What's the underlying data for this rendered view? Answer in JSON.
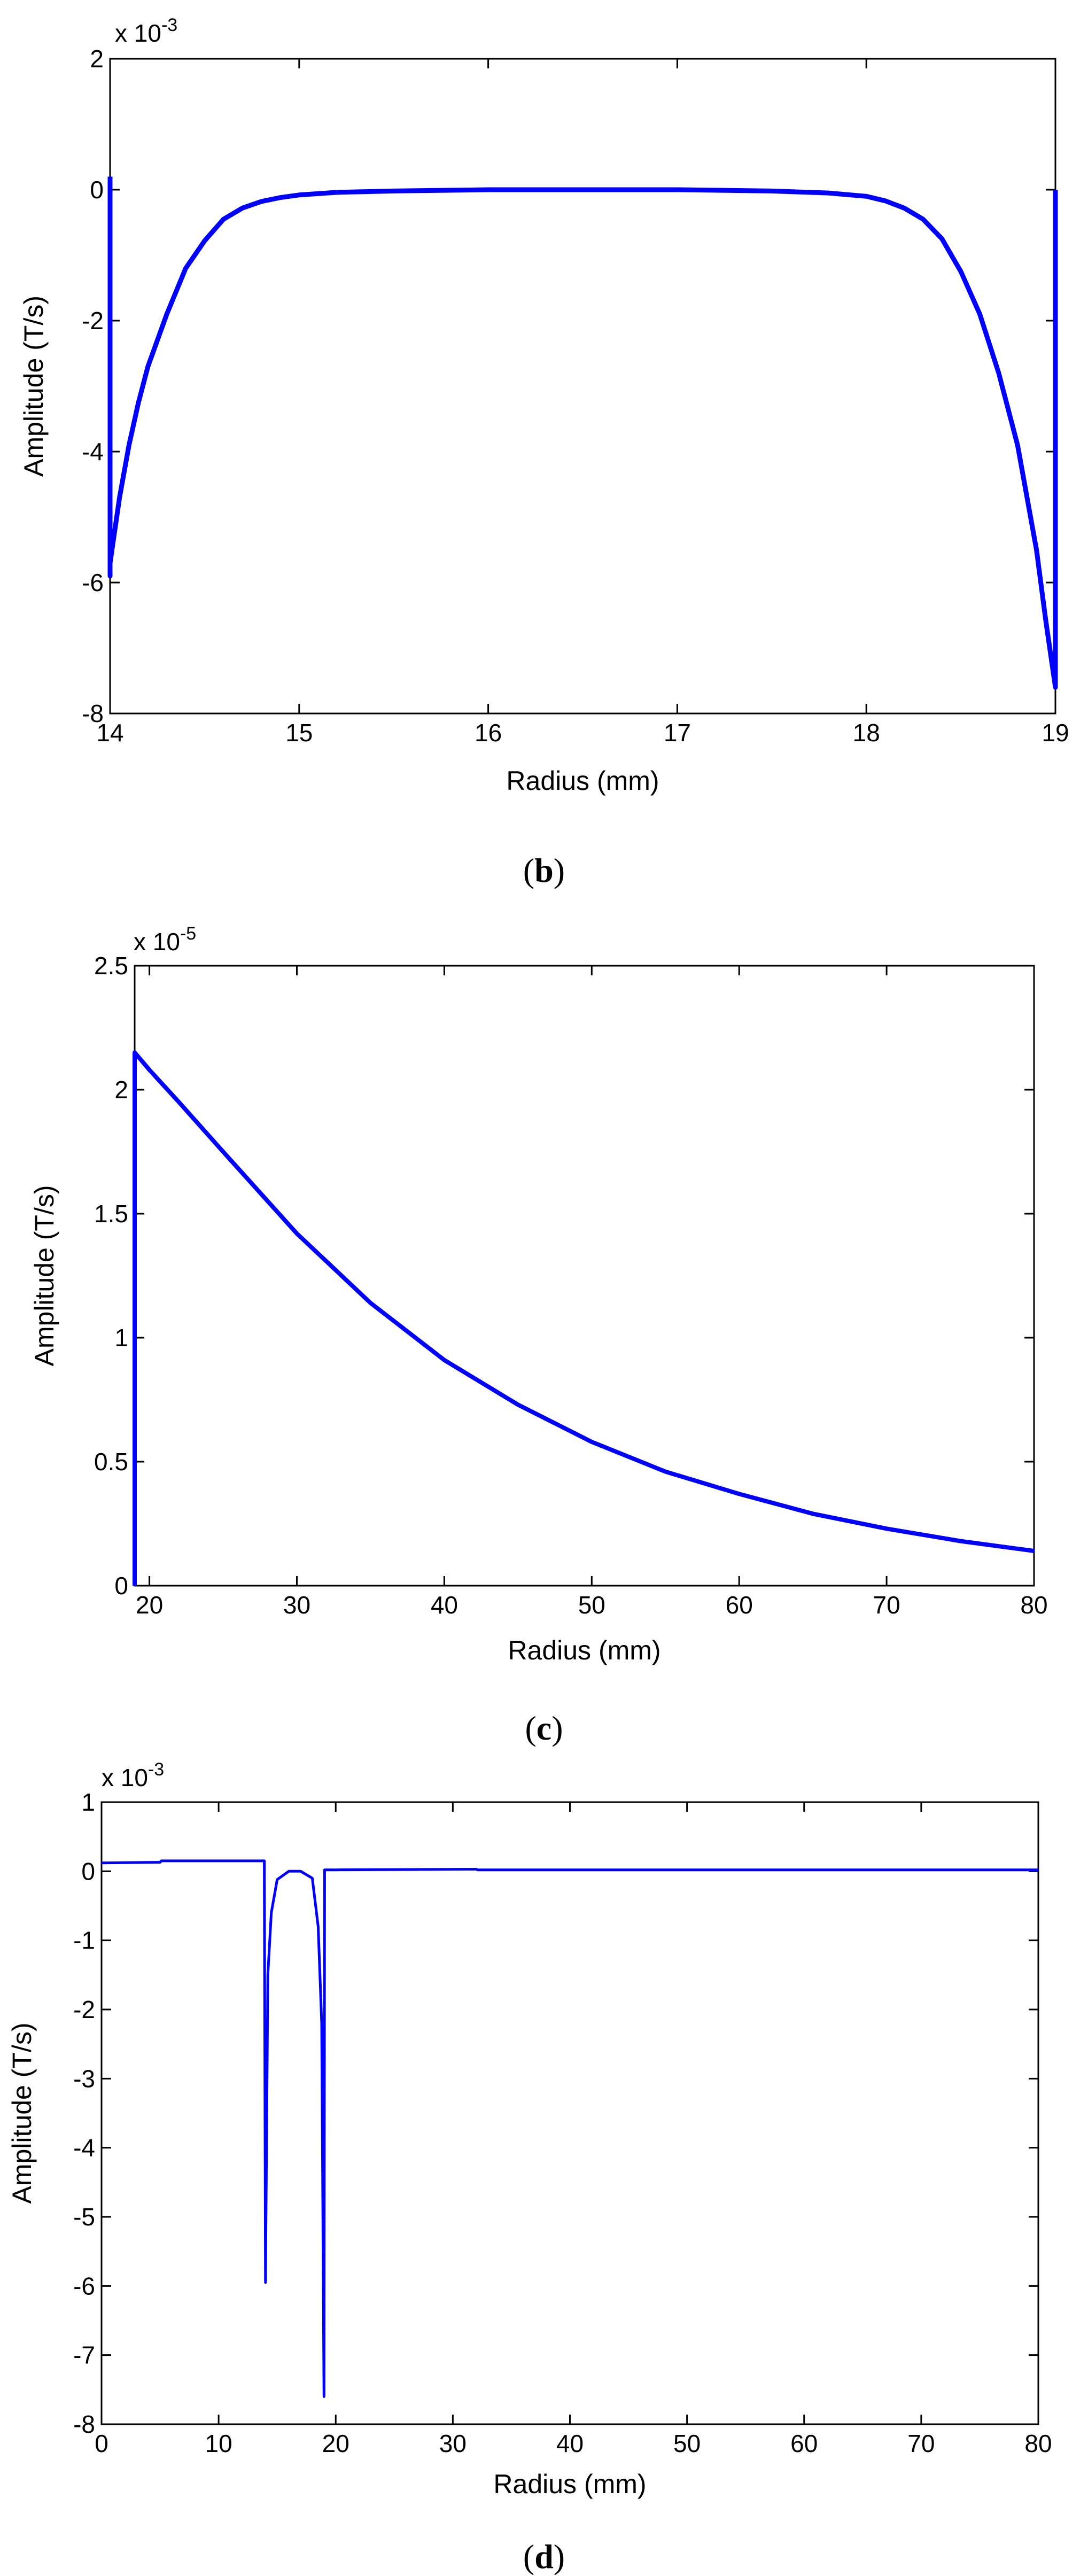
{
  "colors": {
    "line": "#0000ff",
    "axis": "#000000"
  },
  "chart_data": [
    {
      "panel": "b",
      "type": "line",
      "xlabel": "Radius (mm)",
      "ylabel": "Amplitude (T/s)",
      "exponent": {
        "base": "x 10",
        "power": "-3"
      },
      "xlim": [
        14,
        19
      ],
      "ylim": [
        -8,
        2
      ],
      "xticks": [
        14,
        15,
        16,
        17,
        18,
        19
      ],
      "xtick_labels": [
        "14",
        "15",
        "16",
        "17",
        "18",
        "19"
      ],
      "yticks": [
        -8,
        -6,
        -4,
        -2,
        0,
        2
      ],
      "ytick_labels": [
        "-8",
        "-6",
        "-4",
        "-2",
        "0",
        "2"
      ],
      "series": [
        {
          "name": "amplitude",
          "x": [
            14.0,
            14.0,
            14.0,
            14.05,
            14.1,
            14.15,
            14.2,
            14.3,
            14.4,
            14.5,
            14.6,
            14.7,
            14.8,
            14.9,
            15.0,
            15.2,
            15.5,
            16.0,
            16.5,
            17.0,
            17.5,
            17.8,
            18.0,
            18.1,
            18.2,
            18.3,
            18.4,
            18.5,
            18.6,
            18.7,
            18.8,
            18.9,
            18.95,
            19.0,
            19.0,
            19.0
          ],
          "y": [
            0.2,
            -5.9,
            -5.7,
            -4.7,
            -3.9,
            -3.25,
            -2.7,
            -1.9,
            -1.2,
            -0.78,
            -0.45,
            -0.28,
            -0.18,
            -0.12,
            -0.08,
            -0.04,
            -0.02,
            0.0,
            0.0,
            0.0,
            -0.02,
            -0.05,
            -0.1,
            -0.17,
            -0.28,
            -0.45,
            -0.75,
            -1.25,
            -1.9,
            -2.8,
            -3.9,
            -5.5,
            -6.6,
            -7.6,
            0.0,
            0.0
          ]
        }
      ]
    },
    {
      "panel": "c",
      "type": "line",
      "xlabel": "Radius (mm)",
      "ylabel": "Amplitude (T/s)",
      "exponent": {
        "base": "x 10",
        "power": "-5"
      },
      "xlim": [
        19,
        80
      ],
      "ylim": [
        0,
        2.5
      ],
      "xticks": [
        20,
        30,
        40,
        50,
        60,
        70,
        80
      ],
      "xtick_labels": [
        "20",
        "30",
        "40",
        "50",
        "60",
        "70",
        "80"
      ],
      "yticks": [
        0,
        0.5,
        1,
        1.5,
        2,
        2.5
      ],
      "ytick_labels": [
        "0",
        "0.5",
        "1",
        "1.5",
        "2",
        "2.5"
      ],
      "series": [
        {
          "name": "amplitude",
          "x": [
            19.0,
            19.0,
            20,
            22,
            25,
            30,
            35,
            40,
            45,
            50,
            55,
            60,
            65,
            70,
            75,
            80
          ],
          "y": [
            0.0,
            2.15,
            2.08,
            1.95,
            1.75,
            1.42,
            1.14,
            0.91,
            0.73,
            0.58,
            0.46,
            0.37,
            0.29,
            0.23,
            0.18,
            0.14
          ]
        }
      ]
    },
    {
      "panel": "d",
      "type": "line",
      "xlabel": "Radius (mm)",
      "ylabel": "Amplitude (T/s)",
      "exponent": {
        "base": "x 10",
        "power": "-3"
      },
      "xlim": [
        0,
        80
      ],
      "ylim": [
        -8,
        1
      ],
      "xticks": [
        0,
        10,
        20,
        30,
        40,
        50,
        60,
        70,
        80
      ],
      "xtick_labels": [
        "0",
        "10",
        "20",
        "30",
        "40",
        "50",
        "60",
        "70",
        "80"
      ],
      "yticks": [
        -8,
        -7,
        -6,
        -5,
        -4,
        -3,
        -2,
        -1,
        0,
        1
      ],
      "ytick_labels": [
        "-8",
        "-7",
        "-6",
        "-5",
        "-4",
        "-3",
        "-2",
        "-1",
        "0",
        "1"
      ],
      "series": [
        {
          "name": "amplitude",
          "x": [
            0,
            5,
            5.1,
            13.9,
            14.0,
            14.2,
            14.5,
            15.0,
            16.0,
            17.0,
            18.0,
            18.5,
            18.8,
            19.0,
            19.05,
            19.1,
            20,
            32,
            32.1,
            80
          ],
          "y": [
            0.12,
            0.13,
            0.15,
            0.15,
            -5.95,
            -1.5,
            -0.6,
            -0.12,
            0.0,
            0.0,
            -0.1,
            -0.8,
            -2.2,
            -7.6,
            0.02,
            0.02,
            0.02,
            0.03,
            0.02,
            0.02
          ]
        }
      ]
    }
  ],
  "panels": [
    {
      "open": "(",
      "letter": "b",
      "close": ")"
    },
    {
      "open": "(",
      "letter": "c",
      "close": ")"
    },
    {
      "open": "(",
      "letter": "d",
      "close": ")"
    }
  ]
}
